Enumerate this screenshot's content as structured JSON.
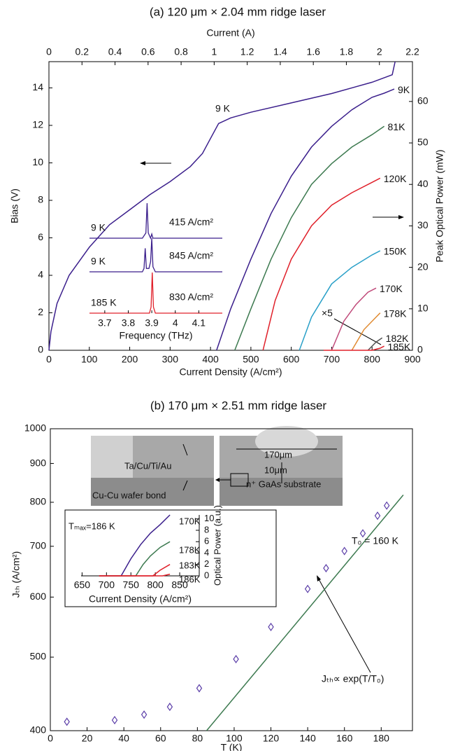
{
  "chart_data": [
    {
      "type": "line",
      "title": "(a)  120 μm × 2.04 mm ridge laser",
      "xlabel": "Current Density (A/cm²)",
      "x2label": "Current (A)",
      "ylabel": "Bias (V)",
      "y2label": "Peak Optical Power (mW)",
      "xlim": [
        0,
        900
      ],
      "xticks": [
        0,
        100,
        200,
        300,
        400,
        500,
        600,
        700,
        800,
        900
      ],
      "x2lim": [
        0,
        2.2
      ],
      "x2ticks": [
        0,
        0.2,
        0.4,
        0.6,
        0.8,
        1,
        1.2,
        1.4,
        1.6,
        1.8,
        2,
        2.2
      ],
      "ylim": [
        0,
        15.4
      ],
      "yticks": [
        0,
        2,
        4,
        6,
        8,
        10,
        12,
        14
      ],
      "y2lim": [
        0,
        69.6
      ],
      "y2ticks": [
        0,
        10,
        20,
        30,
        40,
        50,
        60
      ],
      "annotation": "×5",
      "series": [
        {
          "name": "9 K",
          "color": "#3b1f8c",
          "x": [
            0,
            5,
            20,
            50,
            100,
            150,
            200,
            250,
            300,
            350,
            380,
            400,
            420,
            450,
            500,
            600,
            700,
            800,
            850,
            855,
            857
          ],
          "values": [
            0,
            1,
            2.5,
            4,
            5.5,
            6.7,
            7.5,
            8.3,
            9,
            9.8,
            10.5,
            11.3,
            12.1,
            12.4,
            12.7,
            13.2,
            13.7,
            14.3,
            14.7,
            15.2,
            15.4
          ]
        },
        {
          "name": "9K",
          "axis": "y2",
          "color": "#3b1f8c",
          "x": [
            415,
            450,
            500,
            550,
            600,
            650,
            700,
            750,
            800,
            830,
            855
          ],
          "values": [
            0,
            10,
            22,
            33,
            42,
            49,
            54,
            58,
            61,
            62,
            63
          ]
        },
        {
          "name": "81K",
          "axis": "y2",
          "color": "#3d7a50",
          "x": [
            460,
            500,
            550,
            600,
            650,
            700,
            750,
            800,
            830
          ],
          "values": [
            0,
            10,
            22,
            32,
            40,
            45,
            49,
            52,
            54
          ]
        },
        {
          "name": "120K",
          "axis": "y2",
          "color": "#e0202a",
          "x": [
            530,
            560,
            600,
            650,
            700,
            750,
            800,
            820
          ],
          "values": [
            0,
            12,
            22,
            30,
            35,
            38,
            40.5,
            41.5
          ]
        },
        {
          "name": "150K",
          "axis": "y2",
          "color": "#2aa0c8",
          "x": [
            620,
            650,
            700,
            750,
            800,
            820
          ],
          "values": [
            0,
            8,
            16,
            20,
            23,
            24
          ]
        },
        {
          "name": "170K",
          "axis": "y2",
          "color": "#c04a7a",
          "x": [
            700,
            730,
            760,
            790,
            810
          ],
          "values": [
            0,
            7,
            11,
            14,
            15
          ]
        },
        {
          "name": "178K",
          "axis": "y2",
          "color": "#e08a30",
          "x": [
            750,
            780,
            810,
            820
          ],
          "values": [
            0,
            5,
            8,
            9
          ]
        },
        {
          "name": "182K",
          "axis": "y2",
          "color": "#555555",
          "x": [
            790,
            810,
            825
          ],
          "values": [
            0,
            2,
            3
          ]
        },
        {
          "name": "185K",
          "axis": "y2",
          "color": "#e0202a",
          "x": [
            680,
            800,
            820,
            830
          ],
          "values": [
            0,
            0,
            0.5,
            1
          ]
        }
      ]
    },
    {
      "type": "spectra",
      "xlabel": "Frequency (THz)",
      "xlim": [
        3.635,
        4.2
      ],
      "xticks": [
        3.7,
        3.8,
        3.9,
        4,
        4.1
      ],
      "series": [
        {
          "name": "9 K",
          "label": "415 A/cm²",
          "color": "#3b1f8c",
          "x": [
            3.635,
            3.86,
            3.875,
            3.88,
            3.885,
            3.895,
            3.9,
            3.905,
            4.2
          ],
          "values": [
            0,
            0,
            0.15,
            1,
            0.15,
            0,
            0.12,
            0,
            0
          ]
        },
        {
          "name": "9 K",
          "label": "845 A/cm²",
          "color": "#3b1f8c",
          "x": [
            3.635,
            3.86,
            3.867,
            3.872,
            3.877,
            3.888,
            3.895,
            3.9,
            3.905,
            3.915,
            4.2
          ],
          "values": [
            0,
            0,
            0.1,
            0.7,
            0.1,
            0.1,
            0.3,
            1,
            0.15,
            0,
            0
          ]
        },
        {
          "name": "185 K",
          "label": "830 A/cm²",
          "color": "#e0202a",
          "x": [
            3.635,
            3.89,
            3.897,
            3.902,
            3.907,
            3.915,
            4.2
          ],
          "values": [
            0,
            0,
            0.15,
            1,
            0.15,
            0,
            0
          ]
        }
      ]
    },
    {
      "type": "scatter",
      "title": "(b)  170 μm × 2.51 mm ridge laser",
      "xlabel": "T (K)",
      "ylabel": "Jₜₕ (A/cm²)",
      "xlim": [
        0,
        197
      ],
      "xticks": [
        0,
        20,
        40,
        60,
        80,
        100,
        120,
        140,
        160,
        180
      ],
      "ylim": [
        400,
        1000
      ],
      "yticks": [
        400,
        500,
        600,
        700,
        800,
        900,
        1000
      ],
      "log_y": true,
      "color": "#5b3ea8",
      "x": [
        9,
        35,
        51,
        65,
        81,
        101,
        120,
        140,
        150,
        160,
        170,
        178,
        183
      ],
      "values": [
        411,
        413,
        420,
        430,
        455,
        497,
        548,
        615,
        655,
        690,
        728,
        768,
        792
      ],
      "fit": {
        "color": "#3d7a50",
        "x": [
          85,
          192
        ],
        "values": [
          400,
          818
        ]
      },
      "annotations": [
        "T₀ = 160 K",
        "Jₜₕ∝ exp(T/T₀)"
      ],
      "sem_labels": [
        "Ta/Cu/Ti/Au",
        "Cu-Cu wafer bond",
        "170μm",
        "10μm",
        "n⁺ GaAs substrate"
      ]
    },
    {
      "type": "line",
      "xlabel": "Current Density (A/cm²)",
      "y2label": "Optical Power (a.u.)",
      "annotation": "Tₘₐₓ=186 K",
      "xlim": [
        648,
        890
      ],
      "xticks": [
        650,
        700,
        750,
        800,
        850
      ],
      "y2lim": [
        0,
        10.7
      ],
      "y2ticks": [
        0,
        2,
        4,
        6,
        8,
        10
      ],
      "series": [
        {
          "name": "170K",
          "axis": "y2",
          "color": "#3b1f8c",
          "x": [
            685,
            730,
            750,
            770,
            790,
            810,
            830
          ],
          "values": [
            0,
            0,
            3,
            5.5,
            7.5,
            9,
            10.7
          ]
        },
        {
          "name": "178K",
          "axis": "y2",
          "color": "#3d7a50",
          "x": [
            685,
            760,
            775,
            790,
            810,
            830
          ],
          "values": [
            0,
            0,
            2,
            3.5,
            5,
            6
          ]
        },
        {
          "name": "183K",
          "axis": "y2",
          "color": "#e0202a",
          "x": [
            685,
            795,
            810,
            830
          ],
          "values": [
            0,
            0,
            1,
            2
          ]
        },
        {
          "name": "186K",
          "axis": "y2",
          "color": "#e0202a",
          "x": [
            685,
            815,
            830
          ],
          "values": [
            0,
            0,
            0.3
          ]
        }
      ]
    }
  ]
}
